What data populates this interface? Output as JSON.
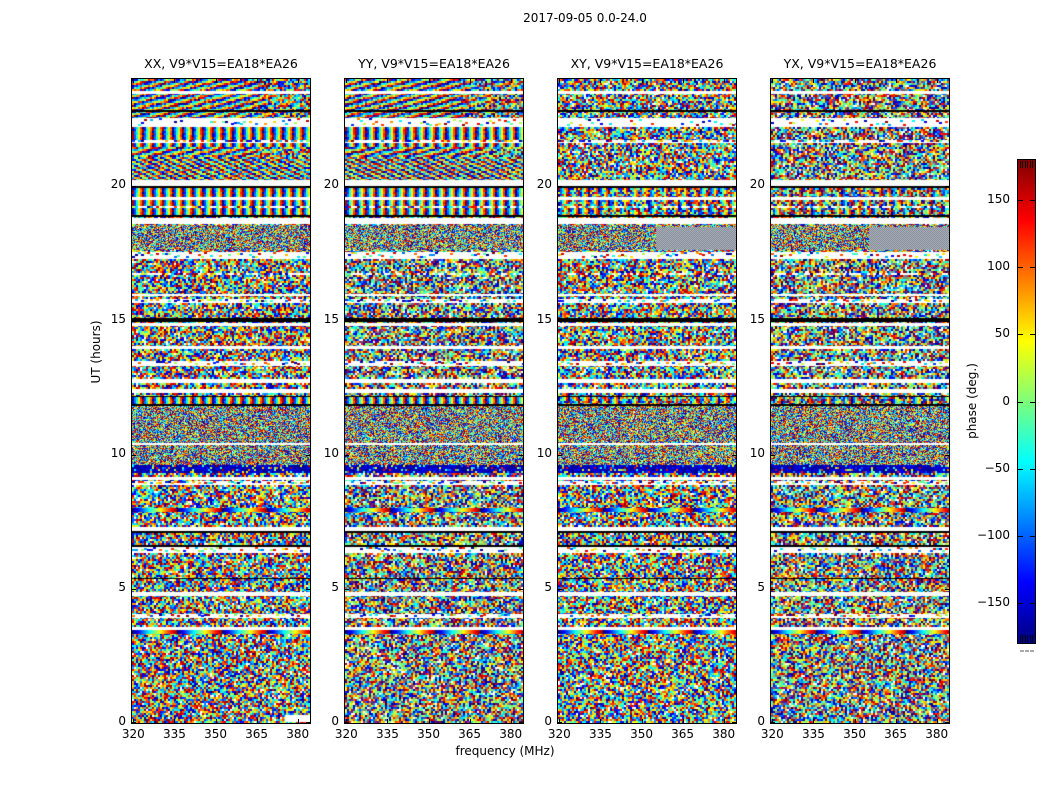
{
  "title": "2017-09-05 0.0-24.0",
  "colors": {
    "background": "#ffffff",
    "text": "#000000",
    "spine": "#000000"
  },
  "chart_data": {
    "type": "heatmap",
    "suptitle": "2017-09-05 0.0-24.0",
    "xlabel": "frequency (MHz)",
    "ylabel": "UT (hours)",
    "x_ticks": [
      320,
      335,
      350,
      365,
      380
    ],
    "y_ticks": [
      0,
      5,
      10,
      15,
      20
    ],
    "x_range": [
      319.5,
      384.5
    ],
    "y_range": [
      0,
      24
    ],
    "panels": [
      {
        "pol": "XX",
        "label": "XX, V9*V15=EA18*EA26"
      },
      {
        "pol": "YY",
        "label": "YY, V9*V15=EA18*EA26"
      },
      {
        "pol": "XY",
        "label": "XY, V9*V15=EA18*EA26"
      },
      {
        "pol": "YX",
        "label": "YX, V9*V15=EA18*EA26"
      }
    ],
    "colorbar": {
      "label": "phase (deg.)",
      "tick_labels": [
        "150",
        "100",
        "50",
        "0",
        "−50",
        "−100",
        "−150"
      ],
      "tick_values": [
        150,
        100,
        50,
        0,
        -50,
        -100,
        -150
      ],
      "range": [
        -180,
        180
      ],
      "colormap": "jet",
      "gradient_stops": [
        [
          0,
          "#800000"
        ],
        [
          0.125,
          "#ff0000"
        ],
        [
          0.375,
          "#ffff00"
        ],
        [
          0.5,
          "#7dff7a"
        ],
        [
          0.625,
          "#00ffff"
        ],
        [
          0.875,
          "#0000ff"
        ],
        [
          1,
          "#000080"
        ]
      ]
    },
    "noise_seed": 20170905,
    "features": [
      {
        "type": "fringes",
        "t0": 21.1,
        "t1": 24.0,
        "panels": "xx_yy"
      },
      {
        "type": "fringes_fine",
        "t0": 20.25,
        "t1": 21.1,
        "panels": "xx_yy"
      },
      {
        "type": "stripes",
        "t0": 21.5,
        "t1": 22.2,
        "panels": "xx_yy"
      },
      {
        "type": "fine",
        "t0": 17.62,
        "t1": 18.56,
        "panels": "all"
      },
      {
        "type": "checker",
        "t0": 17.62,
        "t1": 18.5,
        "panels": "xy_yx",
        "x0": 0.55,
        "x1": 1.0
      },
      {
        "type": "fine",
        "t0": 9.6,
        "t1": 11.82,
        "panels": "all"
      },
      {
        "type": "dark",
        "t0": 9.3,
        "t1": 9.6,
        "panels": "all"
      },
      {
        "type": "stripes",
        "t0": 18.92,
        "t1": 19.94,
        "panels": "all"
      },
      {
        "type": "stripes",
        "t0": 11.9,
        "t1": 12.14,
        "panels": "all"
      },
      {
        "type": "rainbow",
        "t0": 7.85,
        "t1": 8.0,
        "panels": "all"
      },
      {
        "type": "rainbow",
        "t0": 3.32,
        "t1": 3.45,
        "panels": "all"
      },
      {
        "type": "white",
        "t0": 23.45,
        "t1": 23.55,
        "panels": "all"
      },
      {
        "type": "black",
        "t0": 22.78,
        "t1": 22.86,
        "panels": "all"
      },
      {
        "type": "dashed",
        "t0": 22.2,
        "t1": 22.55,
        "panels": "all"
      },
      {
        "type": "dashed",
        "t0": 21.62,
        "t1": 21.72,
        "panels": "all"
      },
      {
        "type": "white",
        "t0": 20.02,
        "t1": 20.22,
        "panels": "all"
      },
      {
        "type": "black",
        "t0": 19.94,
        "t1": 20.02,
        "panels": "all"
      },
      {
        "type": "white",
        "t0": 19.5,
        "t1": 19.6,
        "panels": "all"
      },
      {
        "type": "dashed",
        "t0": 19.18,
        "t1": 19.28,
        "panels": "all"
      },
      {
        "type": "black",
        "t0": 18.84,
        "t1": 18.92,
        "panels": "all"
      },
      {
        "type": "white",
        "t0": 18.58,
        "t1": 18.82,
        "panels": "all"
      },
      {
        "type": "dashed",
        "t0": 17.3,
        "t1": 17.55,
        "panels": "all"
      },
      {
        "type": "dashed",
        "t0": 16.68,
        "t1": 16.78,
        "panels": "all"
      },
      {
        "type": "white",
        "t0": 15.9,
        "t1": 16.0,
        "panels": "all"
      },
      {
        "type": "dashed",
        "t0": 15.66,
        "t1": 15.8,
        "panels": "all"
      },
      {
        "type": "black",
        "t0": 14.93,
        "t1": 15.1,
        "panels": "all"
      },
      {
        "type": "white",
        "t0": 14.79,
        "t1": 14.92,
        "panels": "all"
      },
      {
        "type": "white",
        "t0": 13.92,
        "t1": 14.05,
        "panels": "all"
      },
      {
        "type": "dashed",
        "t0": 13.3,
        "t1": 13.5,
        "panels": "all"
      },
      {
        "type": "white",
        "t0": 12.67,
        "t1": 12.82,
        "panels": "all"
      },
      {
        "type": "white",
        "t0": 12.3,
        "t1": 12.44,
        "panels": "all"
      },
      {
        "type": "black",
        "t0": 12.14,
        "t1": 12.2,
        "panels": "all"
      },
      {
        "type": "black",
        "t0": 11.82,
        "t1": 11.9,
        "panels": "all"
      },
      {
        "type": "white",
        "t0": 10.35,
        "t1": 10.45,
        "panels": "all"
      },
      {
        "type": "white",
        "t0": 9.05,
        "t1": 9.15,
        "panels": "all"
      },
      {
        "type": "dashed",
        "t0": 8.88,
        "t1": 9.02,
        "panels": "all"
      },
      {
        "type": "white",
        "t0": 7.15,
        "t1": 7.3,
        "panels": "all"
      },
      {
        "type": "black",
        "t0": 7.08,
        "t1": 7.15,
        "panels": "all"
      },
      {
        "type": "black",
        "t0": 6.57,
        "t1": 6.63,
        "panels": "all"
      },
      {
        "type": "dashed",
        "t0": 6.35,
        "t1": 6.55,
        "panels": "all"
      },
      {
        "type": "black",
        "t0": 5.36,
        "t1": 5.42,
        "panels": "all"
      },
      {
        "type": "white",
        "t0": 4.73,
        "t1": 4.88,
        "panels": "all"
      },
      {
        "type": "dashed",
        "t0": 3.92,
        "t1": 4.08,
        "panels": "all"
      },
      {
        "type": "white",
        "t0": 3.47,
        "t1": 3.58,
        "panels": "all"
      },
      {
        "type": "white_patch",
        "t0": 0.02,
        "t1": 0.28,
        "panels": "XX",
        "x0": 0.86,
        "x1": 1.0
      }
    ]
  }
}
